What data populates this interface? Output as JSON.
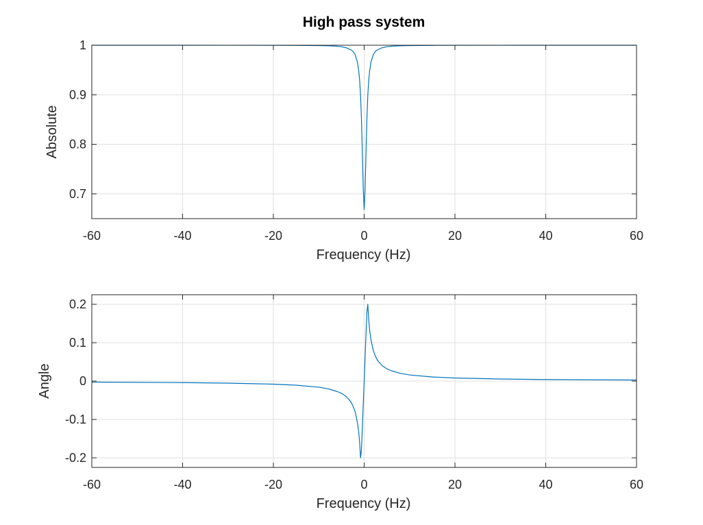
{
  "figure_title": "High pass system",
  "chart_data": [
    {
      "type": "line",
      "title": "High pass system",
      "xlabel": "Frequency (Hz)",
      "ylabel": "Absolute",
      "xlim": [
        -60,
        60
      ],
      "ylim": [
        0.65,
        1.0
      ],
      "xticks": [
        -60,
        -40,
        -20,
        0,
        20,
        40,
        60
      ],
      "xtick_labels": [
        "-60",
        "-40",
        "-20",
        "0",
        "20",
        "40",
        "60"
      ],
      "yticks": [
        0.7,
        0.8,
        0.9,
        1.0
      ],
      "ytick_labels": [
        "0.7",
        "0.8",
        "0.9",
        "1"
      ],
      "grid": true,
      "series": [
        {
          "color": "#0072bd",
          "x": [
            -60,
            -40,
            -30,
            -20,
            -15,
            -10,
            -8,
            -6,
            -5,
            -4,
            -3,
            -2.5,
            -2,
            -1.5,
            -1.2,
            -1,
            -0.8,
            -0.6,
            -0.4,
            -0.2,
            0,
            0.2,
            0.4,
            0.6,
            0.8,
            1,
            1.2,
            1.5,
            2,
            2.5,
            3,
            4,
            5,
            6,
            8,
            10,
            15,
            20,
            30,
            40,
            60
          ],
          "y": [
            1.0,
            1.0,
            0.9999,
            0.9998,
            0.9997,
            0.9993,
            0.999,
            0.998,
            0.997,
            0.995,
            0.991,
            0.988,
            0.981,
            0.966,
            0.948,
            0.929,
            0.899,
            0.852,
            0.782,
            0.709,
            0.668,
            0.709,
            0.782,
            0.852,
            0.899,
            0.929,
            0.948,
            0.966,
            0.981,
            0.988,
            0.991,
            0.995,
            0.997,
            0.998,
            0.999,
            0.9993,
            0.9997,
            0.9998,
            0.9999,
            1.0,
            1.0
          ]
        }
      ]
    },
    {
      "type": "line",
      "title": "",
      "xlabel": "Frequency (Hz)",
      "ylabel": "Angle",
      "xlim": [
        -60,
        60
      ],
      "ylim": [
        -0.225,
        0.225
      ],
      "xticks": [
        -60,
        -40,
        -20,
        0,
        20,
        40,
        60
      ],
      "xtick_labels": [
        "-60",
        "-40",
        "-20",
        "0",
        "20",
        "40",
        "60"
      ],
      "yticks": [
        -0.2,
        -0.1,
        0,
        0.1,
        0.2
      ],
      "ytick_labels": [
        "-0.2",
        "-0.1",
        "0",
        "0.1",
        "0.2"
      ],
      "grid": true,
      "series": [
        {
          "color": "#0072bd",
          "x": [
            -60,
            -40,
            -30,
            -20,
            -15,
            -10,
            -8,
            -6,
            -5,
            -4,
            -3,
            -2.5,
            -2,
            -1.5,
            -1.2,
            -1,
            -0.8,
            -0.6,
            -0.4,
            -0.2,
            0,
            0.2,
            0.4,
            0.6,
            0.8,
            1,
            1.2,
            1.5,
            2,
            2.5,
            3,
            4,
            5,
            6,
            8,
            10,
            15,
            20,
            30,
            40,
            60
          ],
          "y": [
            -0.0027,
            -0.004,
            -0.0053,
            -0.008,
            -0.0107,
            -0.016,
            -0.02,
            -0.027,
            -0.032,
            -0.04,
            -0.053,
            -0.064,
            -0.08,
            -0.107,
            -0.133,
            -0.16,
            -0.2,
            -0.18,
            -0.12,
            -0.06,
            0,
            0.06,
            0.12,
            0.18,
            0.2,
            0.16,
            0.133,
            0.107,
            0.08,
            0.064,
            0.053,
            0.04,
            0.032,
            0.027,
            0.02,
            0.016,
            0.0107,
            0.008,
            0.0053,
            0.004,
            0.0027
          ]
        }
      ]
    }
  ]
}
